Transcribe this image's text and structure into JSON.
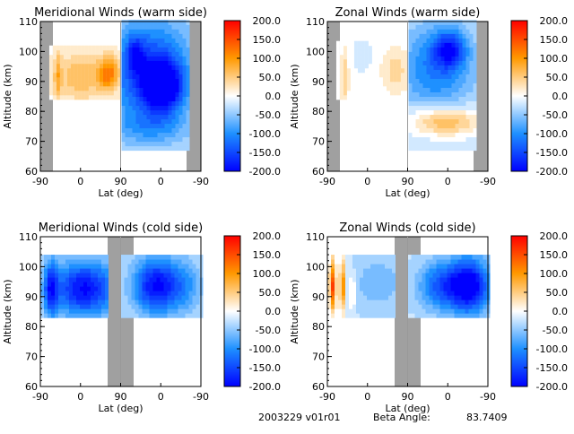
{
  "chart_data": [
    {
      "type": "heatmap",
      "title": "Meridional Winds (warm side)",
      "xlabel": "Lat (deg)",
      "ylabel": "Altitude (km)",
      "xticks": [
        "-90",
        "0",
        "90",
        "0",
        "-90"
      ],
      "yticks": [
        "60",
        "70",
        "80",
        "90",
        "100",
        "110"
      ],
      "ylim": [
        60,
        110
      ],
      "colorbar": {
        "ticks": [
          "200.0",
          "150.0",
          "100.0",
          "50.0",
          "0.0",
          "-50.0",
          "-100.0",
          "-150.0",
          "-200.0"
        ],
        "range": [
          -200,
          200
        ]
      },
      "gray_bands_lat": [
        [
          -90,
          -70
        ],
        [
          -60,
          -90
        ]
      ],
      "features": [
        {
          "region": "left half",
          "sign": "positive",
          "peak": 120,
          "alt_range": [
            84,
            102
          ],
          "description": "orange jet centered near 90 km"
        },
        {
          "region": "right half",
          "sign": "negative",
          "peak": -190,
          "alt_range": [
            67,
            110
          ],
          "description": "strong blue southward winds"
        }
      ]
    },
    {
      "type": "heatmap",
      "title": "Zonal Winds (warm side)",
      "xlabel": "Lat (deg)",
      "ylabel": "Altitude (km)",
      "xticks": [
        "-90",
        "0",
        "90",
        "0",
        "-90"
      ],
      "yticks": [
        "60",
        "70",
        "80",
        "90",
        "100",
        "110"
      ],
      "ylim": [
        60,
        110
      ],
      "colorbar": {
        "ticks": [
          "200.0",
          "150.0",
          "100.0",
          "50.0",
          "0.0",
          "-50.0",
          "-100.0",
          "-150.0",
          "-200.0"
        ],
        "range": [
          -200,
          200
        ]
      },
      "gray_bands_lat": [
        [
          -90,
          -70
        ],
        [
          -60,
          -90
        ]
      ],
      "features": [
        {
          "region": "left half",
          "sign": "mixed",
          "peak": 50,
          "alt_range": [
            85,
            102
          ]
        },
        {
          "region": "right half upper",
          "sign": "negative",
          "peak": -120,
          "alt_range": [
            80,
            110
          ]
        },
        {
          "region": "right half lower",
          "sign": "positive",
          "peak": 110,
          "alt_range": [
            70,
            80
          ]
        }
      ]
    },
    {
      "type": "heatmap",
      "title": "Meridional Winds (cold side)",
      "xlabel": "Lat (deg)",
      "ylabel": "Altitude (km)",
      "xticks": [
        "-90",
        "0",
        "90",
        "0",
        "-90"
      ],
      "yticks": [
        "60",
        "70",
        "80",
        "90",
        "100",
        "110"
      ],
      "ylim": [
        60,
        110
      ],
      "colorbar": {
        "ticks": [
          "200.0",
          "150.0",
          "100.0",
          "50.0",
          "0.0",
          "-50.0",
          "-100.0",
          "-150.0",
          "-200.0"
        ],
        "range": [
          -200,
          200
        ]
      },
      "gray_bands_lat": [
        [
          60,
          120
        ]
      ],
      "features": [
        {
          "region": "left half",
          "sign": "negative",
          "peak": -190,
          "alt_range": [
            83,
            103
          ]
        },
        {
          "region": "right half",
          "sign": "negative",
          "peak": -180,
          "alt_range": [
            83,
            103
          ]
        }
      ]
    },
    {
      "type": "heatmap",
      "title": "Zonal Winds (cold side)",
      "xlabel": "Lat (deg)",
      "ylabel": "Altitude (km)",
      "xticks": [
        "-90",
        "0",
        "90",
        "0",
        "-90"
      ],
      "yticks": [
        "60",
        "70",
        "80",
        "90",
        "100",
        "110"
      ],
      "ylim": [
        60,
        110
      ],
      "colorbar": {
        "ticks": [
          "200.0",
          "150.0",
          "100.0",
          "50.0",
          "0.0",
          "-50.0",
          "-100.0",
          "-150.0",
          "-200.0"
        ],
        "range": [
          -200,
          200
        ]
      },
      "gray_bands_lat": [
        [
          60,
          120
        ]
      ],
      "features": [
        {
          "region": "left edge",
          "sign": "positive",
          "peak": 180,
          "alt_range": [
            83,
            103
          ]
        },
        {
          "region": "left center",
          "sign": "negative",
          "peak": -40,
          "alt_range": [
            84,
            103
          ]
        },
        {
          "region": "right half",
          "sign": "negative",
          "peak": -200,
          "alt_range": [
            83,
            103
          ]
        }
      ]
    }
  ],
  "footer": {
    "date_version": "2003229 v01r01",
    "beta_label": "Beta Angle:",
    "beta_value": "83.7409"
  },
  "colors": {
    "gray_band": "#a0a0a0",
    "max": "#ff0000",
    "mid_pos": "#ff9900",
    "zero": "#ffffff",
    "mid_neg": "#1e90ff",
    "min": "#0000ff"
  }
}
